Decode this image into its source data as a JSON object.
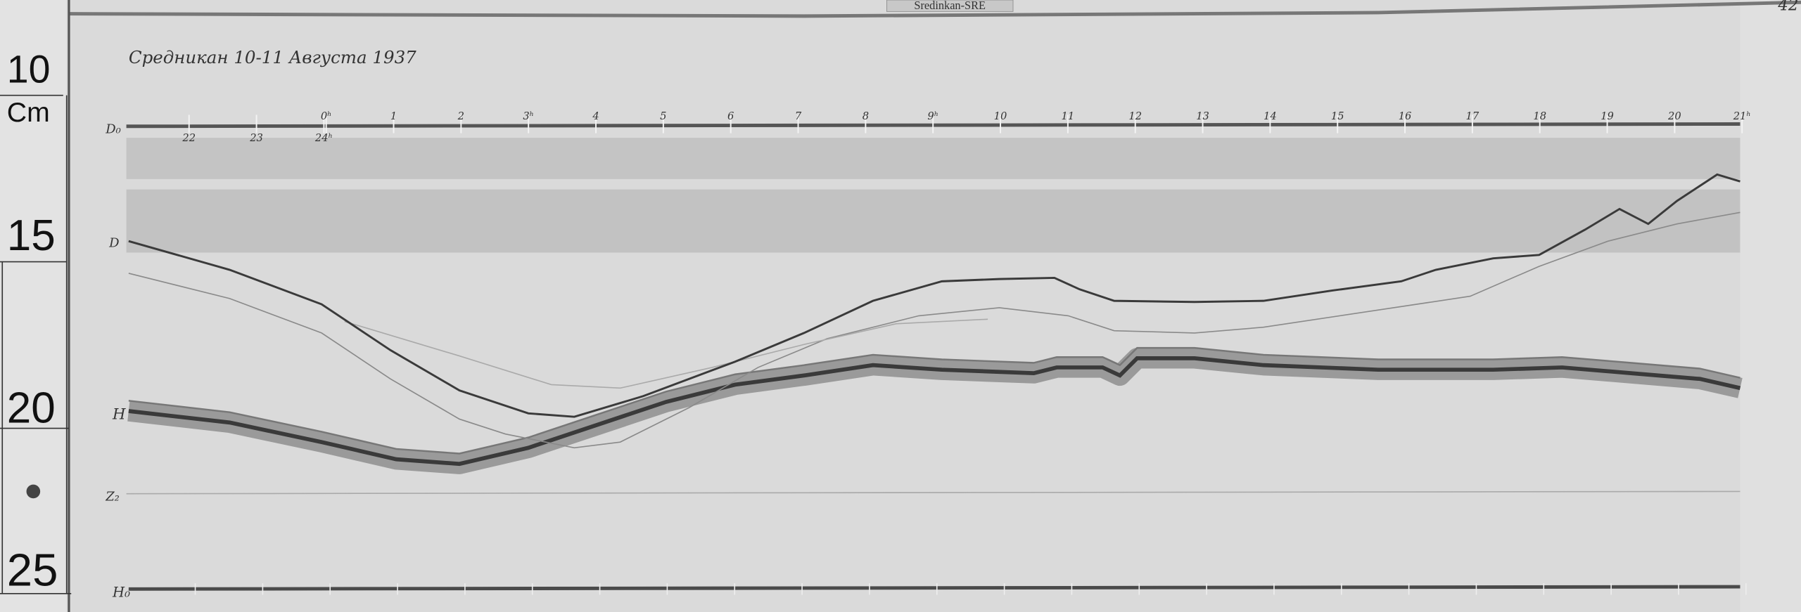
{
  "record": {
    "title": "Средникан 10-11 Августа 1937",
    "station_tag": "Sredinkan-SRE",
    "sheet_number": "42"
  },
  "ruler": {
    "unit": "Cm",
    "marks": [
      "10",
      "15",
      "20",
      "25"
    ]
  },
  "trace_labels": {
    "d_baseline": "D₀",
    "d": "D",
    "h": "H",
    "z": "Z₂",
    "h_baseline": "H₀"
  },
  "time_axis": {
    "top_hours": [
      "0ʰ",
      "1",
      "2",
      "3ʰ",
      "4",
      "5",
      "6",
      "7",
      "8",
      "9ʰ",
      "10",
      "11",
      "12",
      "13",
      "14",
      "15",
      "16",
      "17",
      "18",
      "19",
      "20",
      "21ʰ"
    ],
    "bottom_hours": [
      "22",
      "23",
      "24ʰ"
    ]
  },
  "colors": {
    "paper": "#d9d9d9",
    "trace": "#3a3a3a",
    "faint_trace": "#8a8a8a",
    "ruler_paper": "#e2e2e2"
  }
}
